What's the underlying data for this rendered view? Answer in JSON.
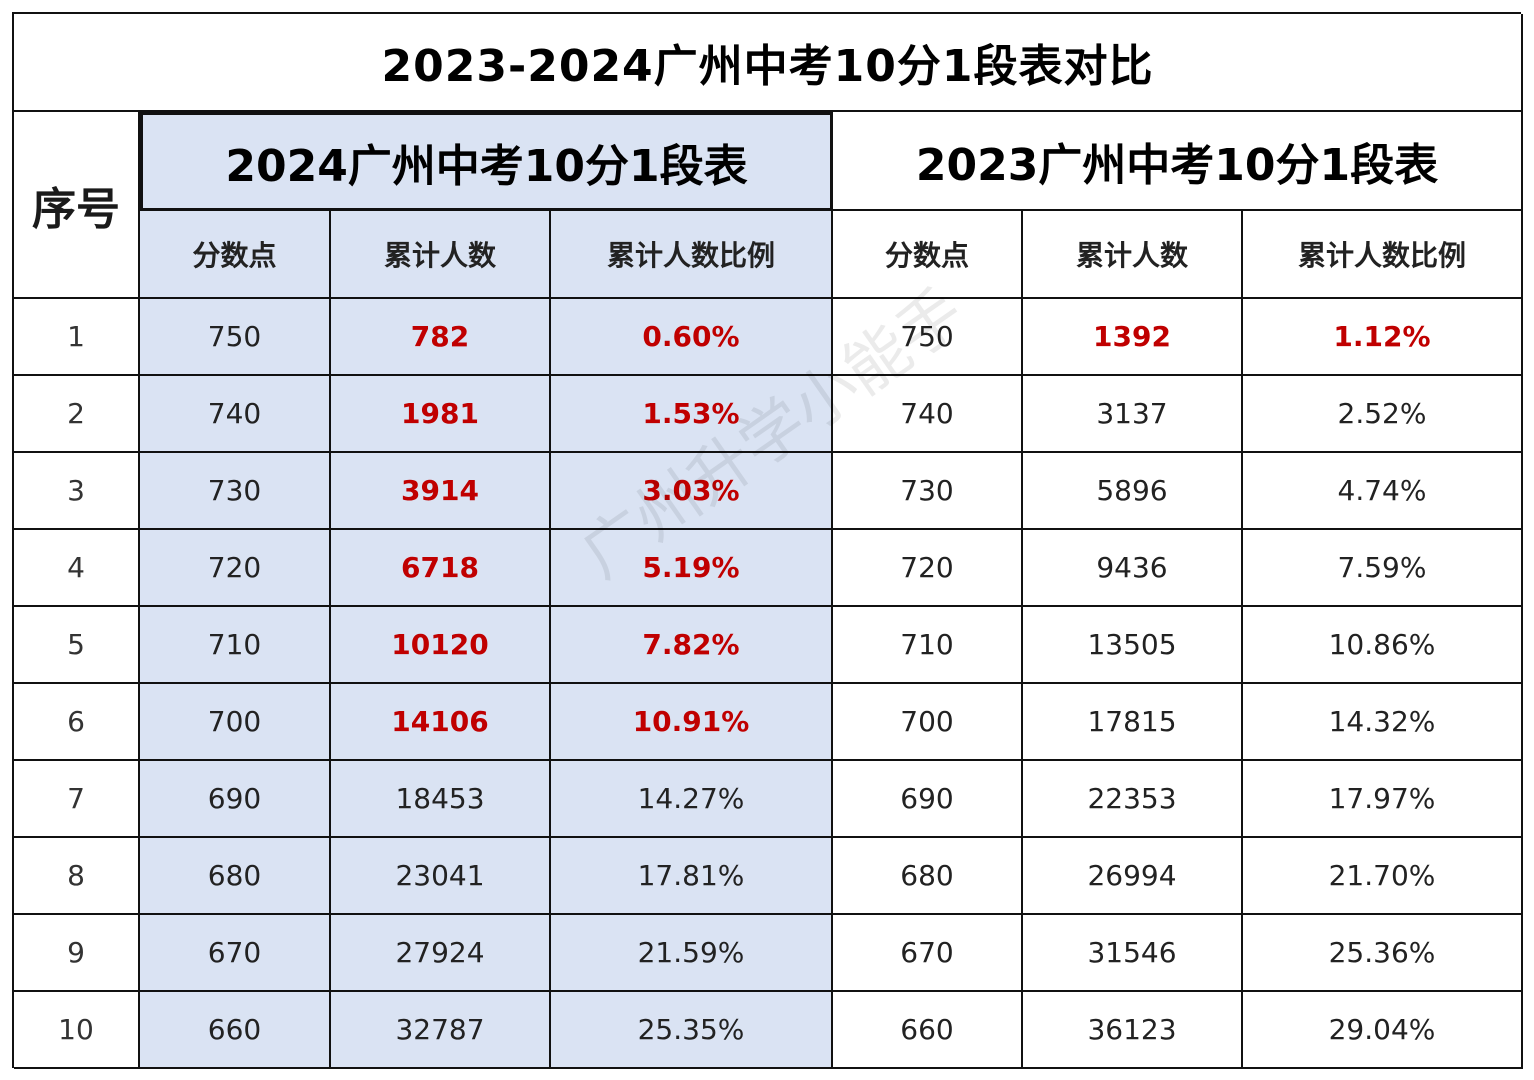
{
  "title": "2023-2024广州中考10分1段表对比",
  "seq_header": "序号",
  "group_2024": "2024广州中考10分1段表",
  "group_2023": "2023广州中考10分1段表",
  "col_headers": {
    "score": "分数点",
    "cum": "累计人数",
    "ratio": "累计人数比例"
  },
  "highlight_color": "#c00000",
  "rows": [
    {
      "seq": "1",
      "s24": "750",
      "c24": "782",
      "p24": "0.60%",
      "s23": "750",
      "c23": "1392",
      "p23": "1.12%"
    },
    {
      "seq": "2",
      "s24": "740",
      "c24": "1981",
      "p24": "1.53%",
      "s23": "740",
      "c23": "3137",
      "p23": "2.52%"
    },
    {
      "seq": "3",
      "s24": "730",
      "c24": "3914",
      "p24": "3.03%",
      "s23": "730",
      "c23": "5896",
      "p23": "4.74%"
    },
    {
      "seq": "4",
      "s24": "720",
      "c24": "6718",
      "p24": "5.19%",
      "s23": "720",
      "c23": "9436",
      "p23": "7.59%"
    },
    {
      "seq": "5",
      "s24": "710",
      "c24": "10120",
      "p24": "7.82%",
      "s23": "710",
      "c23": "13505",
      "p23": "10.86%"
    },
    {
      "seq": "6",
      "s24": "700",
      "c24": "14106",
      "p24": "10.91%",
      "s23": "700",
      "c23": "17815",
      "p23": "14.32%"
    },
    {
      "seq": "7",
      "s24": "690",
      "c24": "18453",
      "p24": "14.27%",
      "s23": "690",
      "c23": "22353",
      "p23": "17.97%"
    },
    {
      "seq": "8",
      "s24": "680",
      "c24": "23041",
      "p24": "17.81%",
      "s23": "680",
      "c23": "26994",
      "p23": "21.70%"
    },
    {
      "seq": "9",
      "s24": "670",
      "c24": "27924",
      "p24": "21.59%",
      "s23": "670",
      "c23": "31546",
      "p23": "25.36%"
    },
    {
      "seq": "10",
      "s24": "660",
      "c24": "32787",
      "p24": "25.35%",
      "s23": "660",
      "c23": "36123",
      "p23": "29.04%"
    }
  ],
  "watermark": "广州升学小能手"
}
